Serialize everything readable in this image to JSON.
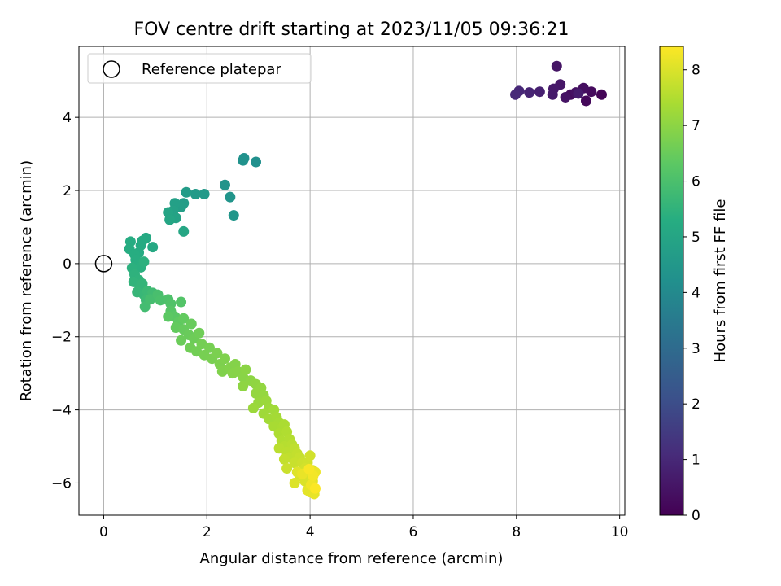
{
  "chart_data": {
    "type": "scatter",
    "title": "FOV centre drift starting at 2023/11/05 09:36:21",
    "xlabel": "Angular distance from reference (arcmin)",
    "ylabel": "Rotation from reference (arcmin)",
    "xlim": [
      -0.48,
      10.1
    ],
    "ylim": [
      -6.88,
      5.94
    ],
    "xticks": [
      0,
      2,
      4,
      6,
      8,
      10
    ],
    "xtick_labels": [
      "0",
      "2",
      "4",
      "6",
      "8",
      "10"
    ],
    "yticks": [
      -6,
      -4,
      -2,
      0,
      2,
      4
    ],
    "ytick_labels": [
      "−6",
      "−4",
      "−2",
      "0",
      "2",
      "4"
    ],
    "grid": true,
    "legend": {
      "position": "top-left",
      "label": "Reference platepar"
    },
    "reference_point": {
      "x": 0,
      "y": 0
    },
    "colorbar": {
      "label": "Hours from first FF file",
      "colormap": "viridis",
      "range": [
        0,
        8.42
      ],
      "ticks": [
        0,
        1,
        2,
        3,
        4,
        5,
        6,
        7,
        8
      ],
      "tick_labels": [
        "0",
        "1",
        "2",
        "3",
        "4",
        "5",
        "6",
        "7",
        "8"
      ]
    },
    "points": [
      [
        9.65,
        4.62,
        0.1
      ],
      [
        9.35,
        4.45,
        0.18
      ],
      [
        9.45,
        4.7,
        0.25
      ],
      [
        9.05,
        4.62,
        0.3
      ],
      [
        9.3,
        4.8,
        0.35
      ],
      [
        9.15,
        4.68,
        0.4
      ],
      [
        8.95,
        4.55,
        0.45
      ],
      [
        8.78,
        5.4,
        0.5
      ],
      [
        8.85,
        4.9,
        0.55
      ],
      [
        8.72,
        4.78,
        0.6
      ],
      [
        8.7,
        4.62,
        0.65
      ],
      [
        9.2,
        4.65,
        0.7
      ],
      [
        8.45,
        4.7,
        0.8
      ],
      [
        8.25,
        4.68,
        0.9
      ],
      [
        8.05,
        4.72,
        1.0
      ],
      [
        7.98,
        4.62,
        1.05
      ],
      [
        2.95,
        2.78,
        4.2
      ],
      [
        2.72,
        2.88,
        4.25
      ],
      [
        2.7,
        2.82,
        4.3
      ],
      [
        2.35,
        2.15,
        4.35
      ],
      [
        2.45,
        1.82,
        4.4
      ],
      [
        2.52,
        1.32,
        4.45
      ],
      [
        1.95,
        1.9,
        4.55
      ],
      [
        1.78,
        1.9,
        4.6
      ],
      [
        1.6,
        1.95,
        4.65
      ],
      [
        1.55,
        1.65,
        4.7
      ],
      [
        1.5,
        1.55,
        4.75
      ],
      [
        1.38,
        1.65,
        4.8
      ],
      [
        1.35,
        1.45,
        4.85
      ],
      [
        1.4,
        1.25,
        4.9
      ],
      [
        1.25,
        1.4,
        4.95
      ],
      [
        1.28,
        1.2,
        5.0
      ],
      [
        1.55,
        0.88,
        5.05
      ],
      [
        0.95,
        0.45,
        5.1
      ],
      [
        0.82,
        0.7,
        5.15
      ],
      [
        0.75,
        0.62,
        5.18
      ],
      [
        0.72,
        0.5,
        5.2
      ],
      [
        0.68,
        0.3,
        5.22
      ],
      [
        0.52,
        0.6,
        5.25
      ],
      [
        0.5,
        0.4,
        5.28
      ],
      [
        0.6,
        0.25,
        5.3
      ],
      [
        0.62,
        0.1,
        5.32
      ],
      [
        0.65,
        -0.05,
        5.35
      ],
      [
        0.72,
        -0.1,
        5.38
      ],
      [
        0.55,
        -0.12,
        5.4
      ],
      [
        0.78,
        0.05,
        5.42
      ],
      [
        0.6,
        -0.3,
        5.45
      ],
      [
        0.68,
        -0.45,
        5.48
      ],
      [
        0.58,
        -0.5,
        5.52
      ],
      [
        0.7,
        -0.65,
        5.55
      ],
      [
        0.75,
        -0.55,
        5.58
      ],
      [
        0.65,
        -0.78,
        5.62
      ],
      [
        0.78,
        -0.85,
        5.65
      ],
      [
        0.85,
        -0.75,
        5.7
      ],
      [
        0.82,
        -1.0,
        5.75
      ],
      [
        0.95,
        -0.8,
        5.8
      ],
      [
        0.8,
        -1.18,
        5.85
      ],
      [
        0.9,
        -0.98,
        5.9
      ],
      [
        1.05,
        -0.85,
        5.95
      ],
      [
        1.1,
        -1.0,
        6.0
      ],
      [
        1.25,
        -0.98,
        6.05
      ],
      [
        1.3,
        -1.1,
        6.1
      ],
      [
        1.5,
        -1.05,
        6.15
      ],
      [
        1.3,
        -1.3,
        6.2
      ],
      [
        1.38,
        -1.45,
        6.25
      ],
      [
        1.25,
        -1.45,
        6.3
      ],
      [
        1.45,
        -1.6,
        6.35
      ],
      [
        1.55,
        -1.5,
        6.4
      ],
      [
        1.4,
        -1.75,
        6.42
      ],
      [
        1.55,
        -1.8,
        6.45
      ],
      [
        1.7,
        -1.65,
        6.48
      ],
      [
        1.65,
        -1.95,
        6.5
      ],
      [
        1.5,
        -2.1,
        6.52
      ],
      [
        1.75,
        -2.05,
        6.55
      ],
      [
        1.85,
        -1.9,
        6.58
      ],
      [
        1.68,
        -2.3,
        6.6
      ],
      [
        1.8,
        -2.4,
        6.62
      ],
      [
        1.9,
        -2.2,
        6.65
      ],
      [
        2.05,
        -2.3,
        6.68
      ],
      [
        1.95,
        -2.5,
        6.7
      ],
      [
        2.1,
        -2.6,
        6.72
      ],
      [
        2.2,
        -2.45,
        6.75
      ],
      [
        2.25,
        -2.75,
        6.78
      ],
      [
        2.35,
        -2.6,
        6.8
      ],
      [
        2.3,
        -2.95,
        6.82
      ],
      [
        2.45,
        -2.85,
        6.85
      ],
      [
        2.55,
        -2.75,
        6.88
      ],
      [
        2.5,
        -3.0,
        6.9
      ],
      [
        2.6,
        -2.95,
        6.92
      ],
      [
        2.7,
        -3.1,
        6.95
      ],
      [
        2.75,
        -2.9,
        6.98
      ],
      [
        2.85,
        -3.2,
        7.0
      ],
      [
        2.7,
        -3.35,
        7.02
      ],
      [
        2.95,
        -3.3,
        7.05
      ],
      [
        3.05,
        -3.4,
        7.08
      ],
      [
        2.95,
        -3.55,
        7.1
      ],
      [
        3.1,
        -3.6,
        7.12
      ],
      [
        3.0,
        -3.8,
        7.15
      ],
      [
        3.15,
        -3.75,
        7.18
      ],
      [
        2.9,
        -3.95,
        7.2
      ],
      [
        3.2,
        -3.95,
        7.22
      ],
      [
        3.1,
        -4.1,
        7.25
      ],
      [
        3.3,
        -4.0,
        7.28
      ],
      [
        3.2,
        -4.25,
        7.3
      ],
      [
        3.35,
        -4.2,
        7.32
      ],
      [
        3.4,
        -4.35,
        7.35
      ],
      [
        3.3,
        -4.45,
        7.38
      ],
      [
        3.45,
        -4.5,
        7.4
      ],
      [
        3.5,
        -4.4,
        7.42
      ],
      [
        3.4,
        -4.65,
        7.45
      ],
      [
        3.55,
        -4.6,
        7.48
      ],
      [
        3.45,
        -4.85,
        7.5
      ],
      [
        3.6,
        -4.8,
        7.52
      ],
      [
        3.5,
        -5.0,
        7.55
      ],
      [
        3.65,
        -4.95,
        7.58
      ],
      [
        3.4,
        -5.05,
        7.6
      ],
      [
        3.55,
        -5.15,
        7.62
      ],
      [
        3.7,
        -5.05,
        7.65
      ],
      [
        3.6,
        -5.3,
        7.68
      ],
      [
        3.75,
        -5.2,
        7.7
      ],
      [
        3.5,
        -5.35,
        7.72
      ],
      [
        3.8,
        -5.3,
        7.75
      ],
      [
        3.7,
        -5.45,
        7.78
      ],
      [
        3.55,
        -5.6,
        7.8
      ],
      [
        3.85,
        -5.45,
        7.82
      ],
      [
        3.95,
        -5.45,
        7.85
      ],
      [
        4.0,
        -5.25,
        7.88
      ],
      [
        3.9,
        -5.6,
        7.9
      ],
      [
        4.05,
        -5.65,
        7.92
      ],
      [
        3.8,
        -5.8,
        7.95
      ],
      [
        4.0,
        -5.85,
        7.98
      ],
      [
        3.9,
        -5.95,
        8.0
      ],
      [
        3.7,
        -6.0,
        8.02
      ],
      [
        3.75,
        -5.7,
        8.05
      ],
      [
        4.05,
        -5.95,
        8.08
      ],
      [
        4.0,
        -6.25,
        8.1
      ],
      [
        3.95,
        -6.2,
        8.12
      ],
      [
        4.08,
        -6.3,
        8.15
      ],
      [
        3.85,
        -5.75,
        8.18
      ],
      [
        4.1,
        -5.7,
        8.2
      ],
      [
        4.02,
        -6.05,
        8.25
      ],
      [
        4.06,
        -5.8,
        8.3
      ],
      [
        3.98,
        -5.62,
        8.35
      ],
      [
        4.1,
        -6.15,
        8.4
      ]
    ]
  }
}
